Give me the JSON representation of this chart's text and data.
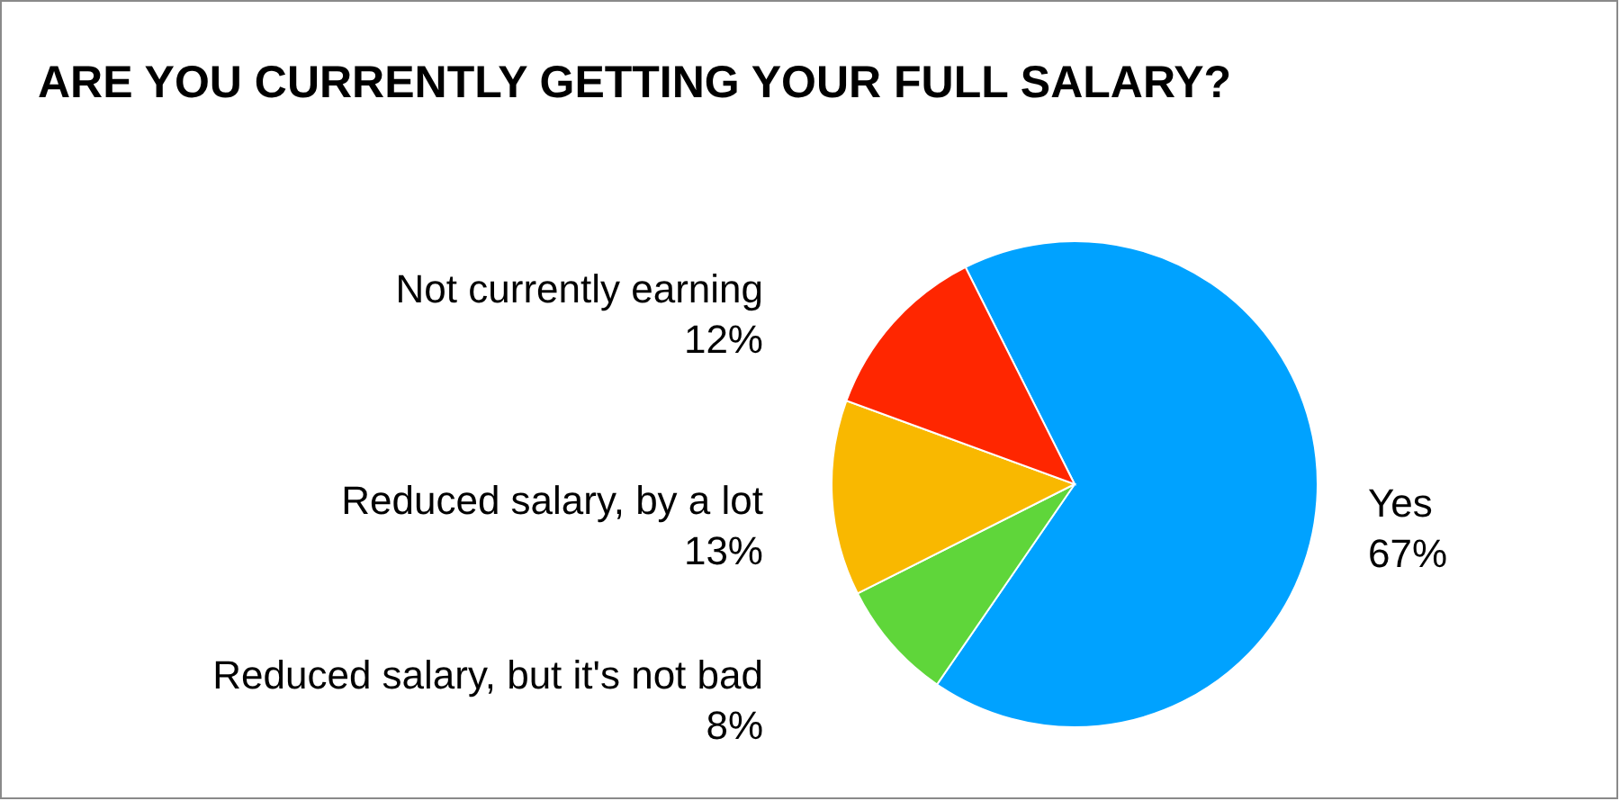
{
  "chart_data": {
    "type": "pie",
    "title": "ARE YOU CURRENTLY GETTING YOUR FULL SALARY?",
    "categories": [
      "Yes",
      "Reduced salary, but it's not bad",
      "Reduced salary, by a lot",
      "Not currently earning"
    ],
    "values": [
      67,
      8,
      13,
      12
    ],
    "value_labels": [
      "67%",
      "8%",
      "13%",
      "12%"
    ],
    "colors": [
      "#00a2ff",
      "#5fd63a",
      "#f9b800",
      "#ff2600"
    ],
    "legend": false
  }
}
